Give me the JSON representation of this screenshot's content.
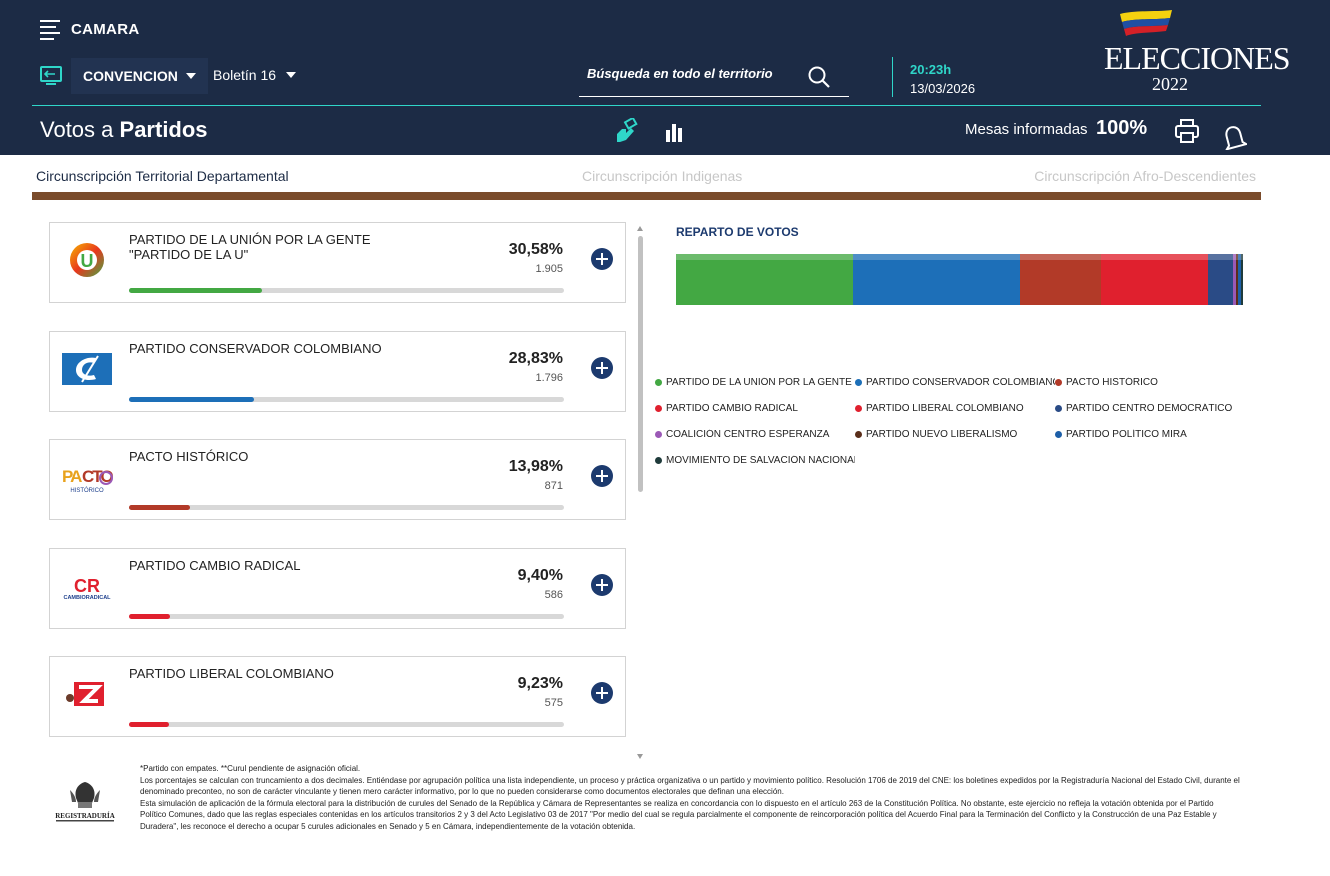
{
  "header": {
    "section": "CAMARA",
    "corporation": "CONVENCION",
    "bulletin": "Boletín 16",
    "search_placeholder": "Búsqueda en todo el territorio",
    "time": "20:23h",
    "date": "13/03/2026",
    "logo_text": "ELECCIONES",
    "logo_year": "2022"
  },
  "subheader": {
    "title_prefix": "Votos a",
    "title_bold": "Partidos",
    "mesas_label": "Mesas informadas",
    "mesas_pct": "100%"
  },
  "tabs": [
    {
      "label": "Circunscripción Territorial Departamental",
      "active": true
    },
    {
      "label": "Circunscripción Indigenas",
      "active": false
    },
    {
      "label": "Circunscripción Afro-Descendientes",
      "active": false
    }
  ],
  "parties": [
    {
      "name": "PARTIDO DE LA UNIÓN POR LA GENTE \"PARTIDO DE LA U\"",
      "pct": "30,58%",
      "votes": "1.905",
      "share": 0.3058,
      "color": "#43a843",
      "logo": "partido-u-logo"
    },
    {
      "name": "PARTIDO CONSERVADOR COLOMBIANO",
      "pct": "28,83%",
      "votes": "1.796",
      "share": 0.2883,
      "color": "#1d6fb8",
      "logo": "conservador-logo"
    },
    {
      "name": "PACTO HISTÓRICO",
      "pct": "13,98%",
      "votes": "871",
      "share": 0.1398,
      "color": "#b23a28",
      "logo": "pacto-historico-logo"
    },
    {
      "name": "PARTIDO CAMBIO RADICAL",
      "pct": "9,40%",
      "votes": "586",
      "share": 0.094,
      "color": "#e0202e",
      "logo": "cambio-radical-logo"
    },
    {
      "name": "PARTIDO LIBERAL COLOMBIANO",
      "pct": "9,23%",
      "votes": "575",
      "share": 0.0923,
      "color": "#e0202e",
      "logo": "liberal-logo"
    }
  ],
  "chart_data": {
    "type": "bar",
    "title": "REPARTO DE VOTOS",
    "stacked": true,
    "series": [
      {
        "name": "PARTIDO DE LA UNIÓN POR LA GENTE \"PAR...",
        "value": 30.58,
        "color": "#43a843"
      },
      {
        "name": "PARTIDO CONSERVADOR COLOMBIANO",
        "value": 28.83,
        "color": "#1d6fb8"
      },
      {
        "name": "PACTO HISTÓRICO",
        "value": 13.98,
        "color": "#b23a28"
      },
      {
        "name": "PARTIDO CAMBIO RADICAL",
        "value": 9.4,
        "color": "#e0202e"
      },
      {
        "name": "PARTIDO LIBERAL COLOMBIANO",
        "value": 9.23,
        "color": "#e0202e"
      },
      {
        "name": "PARTIDO CENTRO DEMOCRÁTICO",
        "value": 4.2,
        "color": "#2a4b86"
      },
      {
        "name": "COALICIÓN CENTRO ESPERANZA",
        "value": 0.6,
        "color": "#9b59b6"
      },
      {
        "name": "PARTIDO NUEVO LIBERALISMO",
        "value": 0.4,
        "color": "#5a2e1a"
      },
      {
        "name": "PARTIDO POLÍTICO MIRA",
        "value": 0.5,
        "color": "#1d5fa8"
      },
      {
        "name": "MOVIMIENTO DE SALVACIÓN NACIONAL",
        "value": 0.3,
        "color": "#1f3b3b"
      }
    ],
    "legend_position": "bottom"
  },
  "footer": {
    "lines": [
      "*Partido con empates. **Curul pendiente de asignación oficial.",
      "Los porcentajes se calculan con truncamiento a dos decimales. Entiéndase por agrupación política una lista independiente, un proceso y práctica organizativa o un partido y movimiento político. Resolución 1706 de 2019 del CNE: los boletines expedidos por la Registraduría Nacional del Estado Civil, durante el denominado preconteo, no son de carácter vinculante y tienen mero carácter informativo, por lo que no pueden considerarse como documentos electorales que definan una elección.",
      "Esta simulación de aplicación de la fórmula electoral para la distribución de curules del Senado de la República y Cámara de Representantes se realiza en concordancia con lo dispuesto en el artículo 263 de la Constitución Política. No obstante, este ejercicio no refleja la votación obtenida por el Partido Político Comunes, dado que las reglas especiales contenidas en los artículos transitorios 2 y 3 del Acto Legislativo 03 de 2017 \"Por medio del cual se regula parcialmente el componente de reincorporación política del Acuerdo Final para la Terminación del Conflicto y la Construcción de una Paz Estable y Duradera\", les reconoce el derecho a ocupar 5 curules adicionales en Senado y 5 en Cámara, independientemente de la votación obtenida."
    ],
    "logo_text": "REGISTRADURÍA"
  }
}
